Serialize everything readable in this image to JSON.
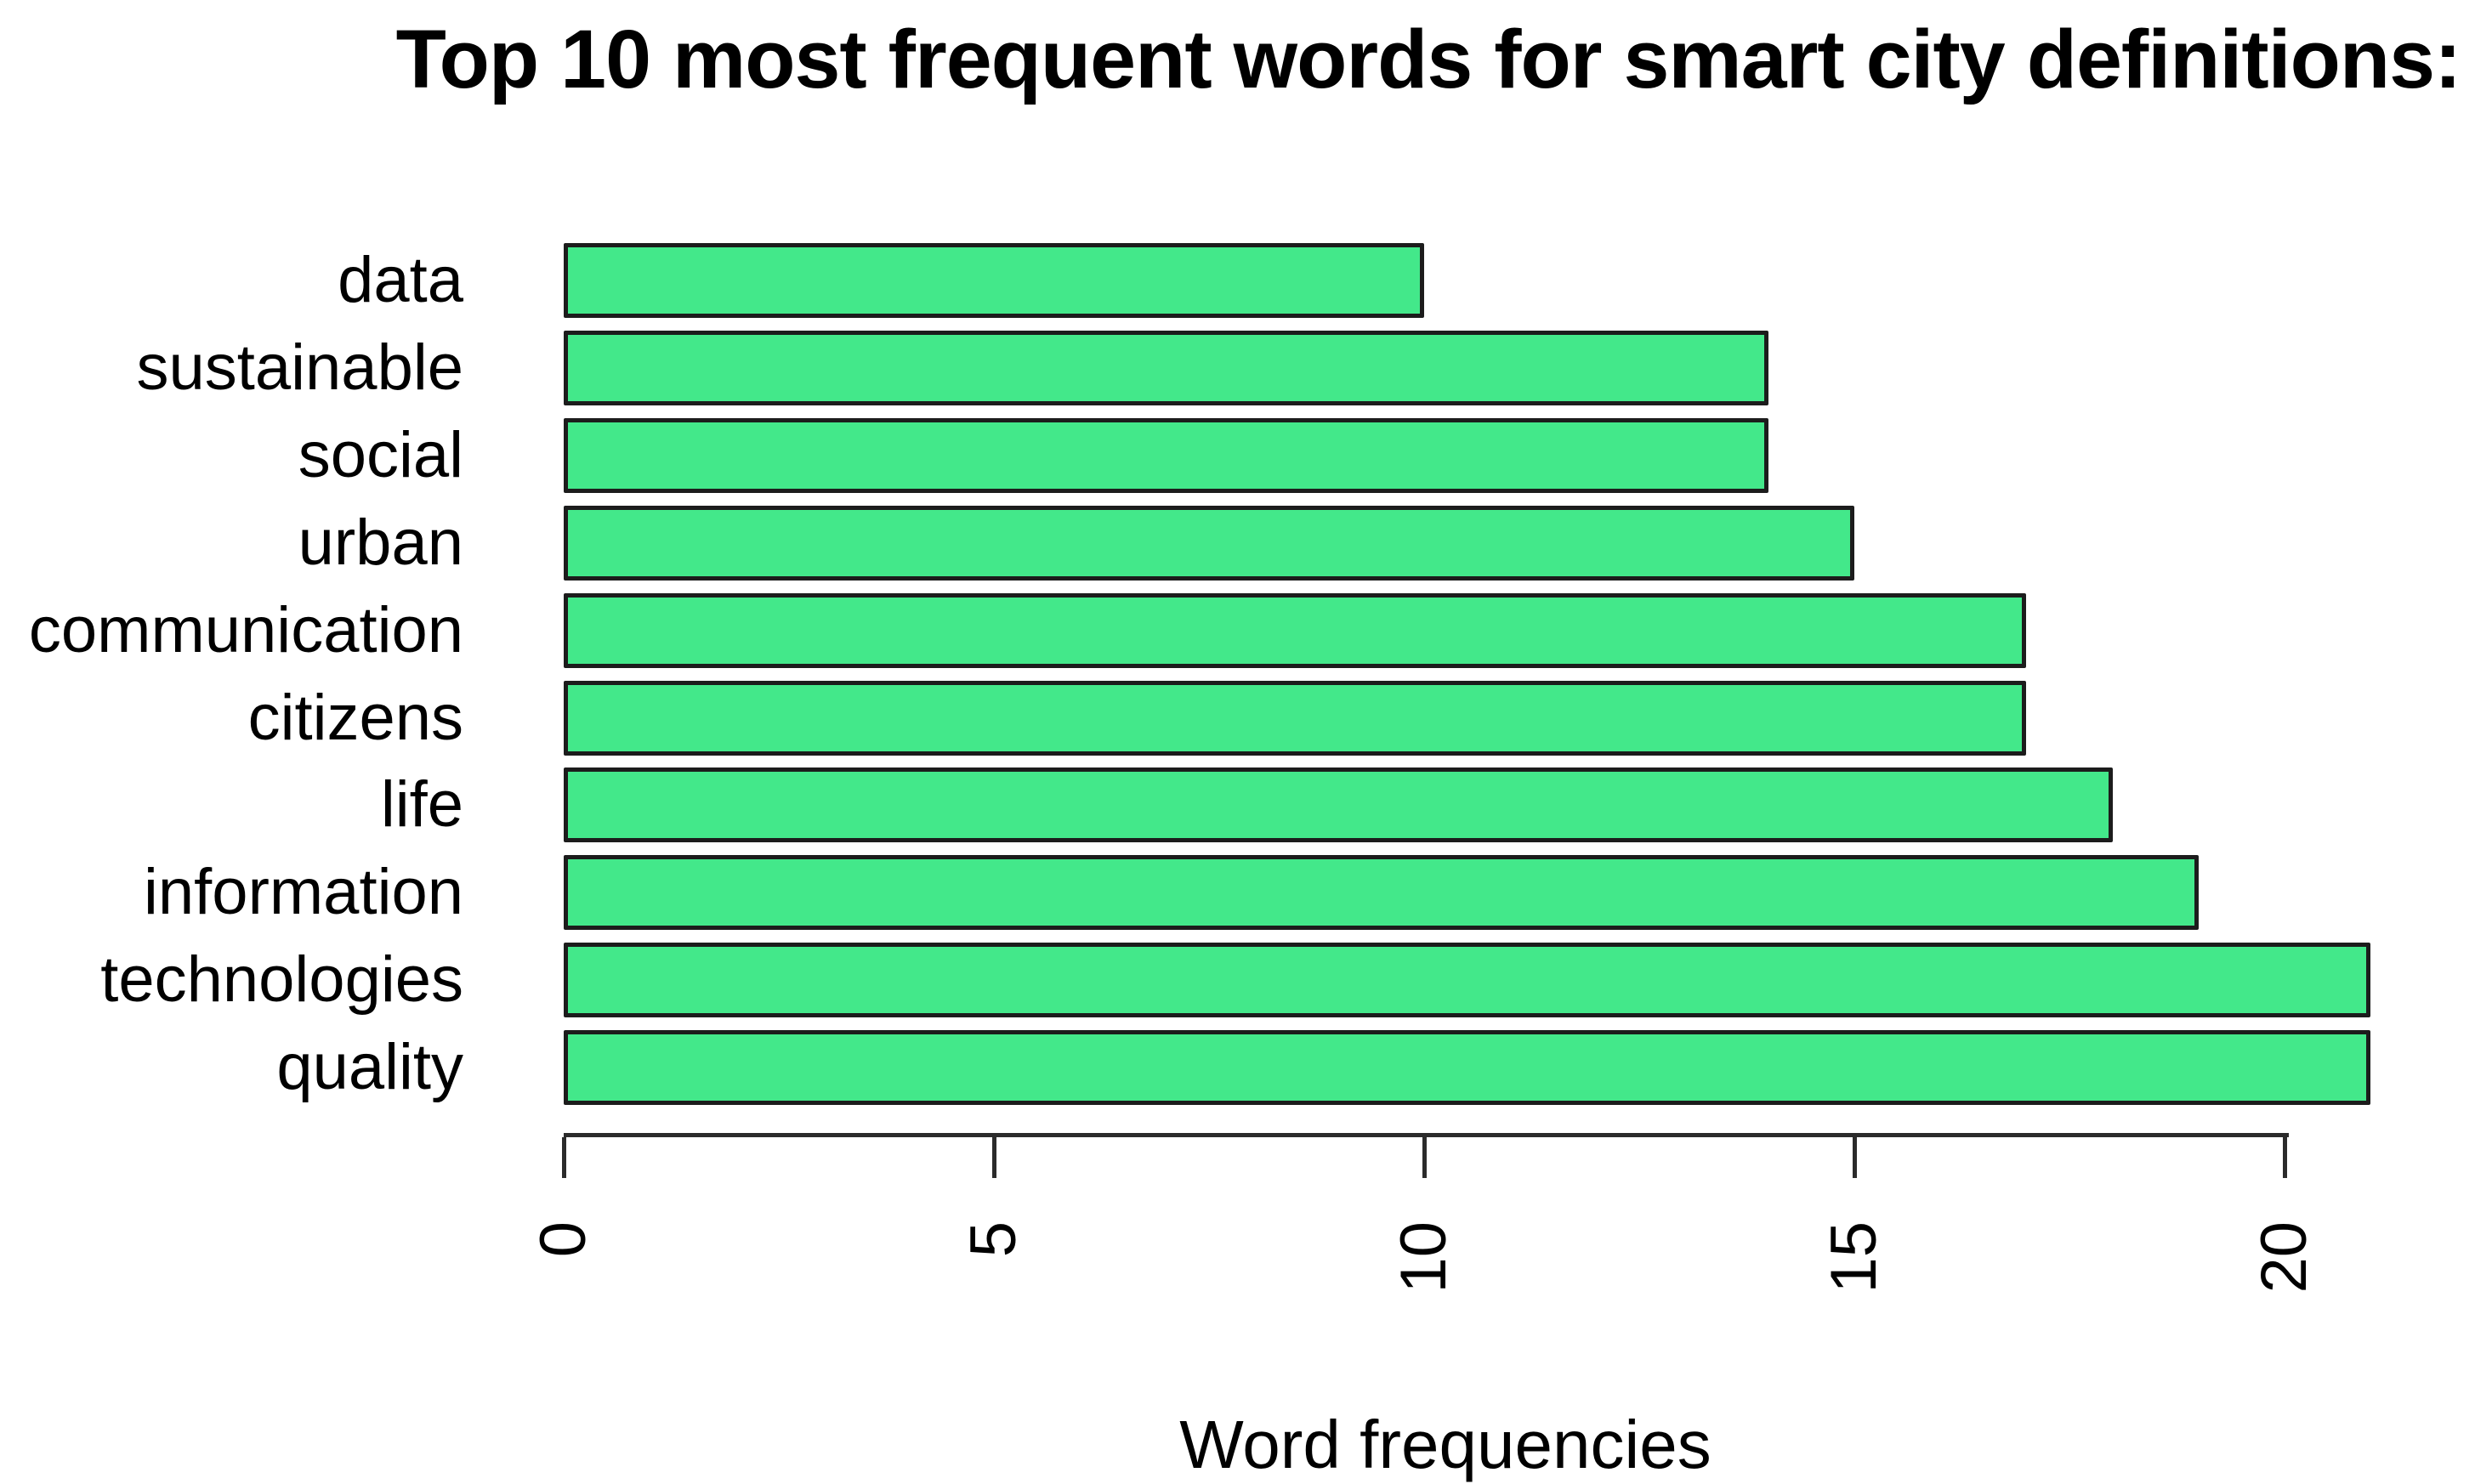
{
  "chart_data": {
    "type": "bar",
    "orientation": "horizontal",
    "title": "Top 10 most frequent words for smart city definitions:",
    "xlabel": "Word frequencies",
    "ylabel": "",
    "categories": [
      "data",
      "sustainable",
      "social",
      "urban",
      "communication",
      "citizens",
      "life",
      "information",
      "technologies",
      "quality"
    ],
    "values": [
      10,
      14,
      14,
      15,
      17,
      17,
      18,
      19,
      21,
      21
    ],
    "x_ticks": [
      "0",
      "5",
      "10",
      "15",
      "20"
    ],
    "axis_range": [
      0,
      20
    ],
    "xlim": [
      0,
      21.5
    ],
    "grid": false,
    "legend": null,
    "tick_label_rotation_deg": -90,
    "bar_color": "#43E88A",
    "bar_border_color": "#1c1c1c",
    "axis_color": "#2b2b2b",
    "text_color": "#000000",
    "background_color": "#ffffff"
  }
}
